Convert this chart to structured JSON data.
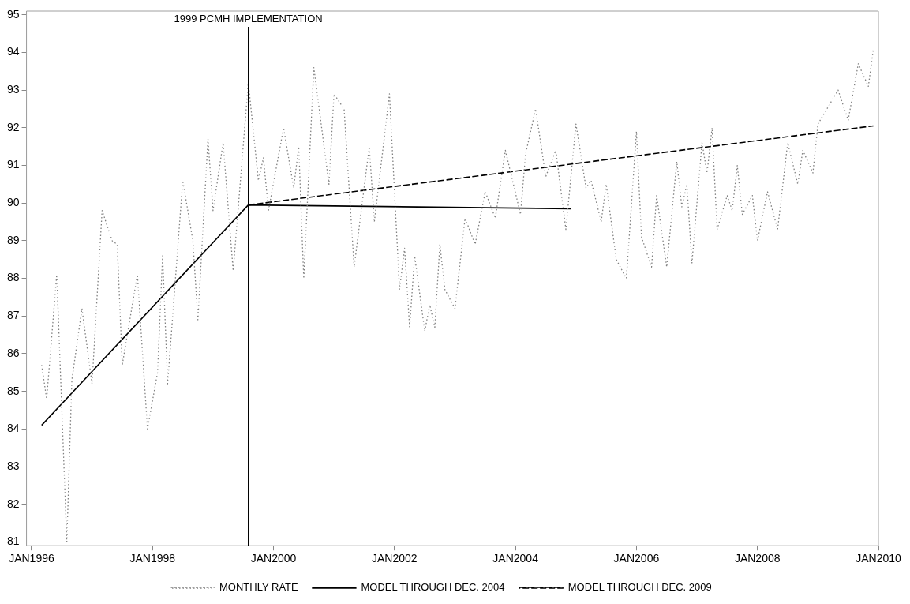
{
  "chart_data": {
    "type": "line",
    "marker": "none",
    "legend": "bottom",
    "grid": false,
    "xlim": [
      "1995-12",
      "2010-01"
    ],
    "xticks": [
      {
        "value": "1996-01",
        "label": "JAN1996"
      },
      {
        "value": "1998-01",
        "label": "JAN1998"
      },
      {
        "value": "2000-01",
        "label": "JAN2000"
      },
      {
        "value": "2002-01",
        "label": "JAN2002"
      },
      {
        "value": "2004-01",
        "label": "JAN2004"
      },
      {
        "value": "2006-01",
        "label": "JAN2006"
      },
      {
        "value": "2008-01",
        "label": "JAN2008"
      },
      {
        "value": "2010-01",
        "label": "JAN2010"
      }
    ],
    "ylim": [
      80.9,
      95.1
    ],
    "yticks": [
      81,
      82,
      83,
      84,
      85,
      86,
      87,
      88,
      89,
      90,
      91,
      92,
      93,
      94,
      95
    ],
    "ref_lines": [
      {
        "axis": "x",
        "value": "1999-08",
        "label": "1999 PCMH IMPLEMENTATION",
        "color": "#000000",
        "line_style": "solid"
      }
    ],
    "series": [
      {
        "name": "MONTHLY RATE",
        "color": "#808080",
        "line_style": "dotted",
        "x": [
          "1996-03",
          "1996-04",
          "1996-06",
          "1996-08",
          "1996-09",
          "1996-11",
          "1997-01",
          "1997-03",
          "1997-05",
          "1997-06",
          "1997-07",
          "1997-10",
          "1997-12",
          "1998-02",
          "1998-03",
          "1998-04",
          "1998-07",
          "1998-09",
          "1998-10",
          "1998-12",
          "1999-01",
          "1999-03",
          "1999-05",
          "1999-08",
          "1999-10",
          "1999-11",
          "1999-12",
          "2000-03",
          "2000-05",
          "2000-06",
          "2000-07",
          "2000-09",
          "2000-12",
          "2001-01",
          "2001-03",
          "2001-05",
          "2001-08",
          "2001-09",
          "2001-12",
          "2002-02",
          "2002-03",
          "2002-04",
          "2002-05",
          "2002-07",
          "2002-08",
          "2002-09",
          "2002-10",
          "2002-11",
          "2003-01",
          "2003-03",
          "2003-05",
          "2003-07",
          "2003-09",
          "2003-11",
          "2004-02",
          "2004-03",
          "2004-05",
          "2004-07",
          "2004-09",
          "2004-11",
          "2005-01",
          "2005-03",
          "2005-04",
          "2005-06",
          "2005-07",
          "2005-09",
          "2005-11",
          "2006-01",
          "2006-02",
          "2006-04",
          "2006-05",
          "2006-07",
          "2006-09",
          "2006-10",
          "2006-11",
          "2006-12",
          "2007-02",
          "2007-03",
          "2007-04",
          "2007-05",
          "2007-07",
          "2007-08",
          "2007-09",
          "2007-10",
          "2007-12",
          "2008-01",
          "2008-03",
          "2008-05",
          "2008-07",
          "2008-09",
          "2008-10",
          "2008-12",
          "2009-01",
          "2009-05",
          "2009-07",
          "2009-09",
          "2009-11",
          "2009-12"
        ],
        "values": [
          85.7,
          84.8,
          88.1,
          81.0,
          85.3,
          87.2,
          85.2,
          89.8,
          89.0,
          88.9,
          85.7,
          88.1,
          84.0,
          85.5,
          88.6,
          85.2,
          90.6,
          89.0,
          86.9,
          91.7,
          89.8,
          91.6,
          88.2,
          93.2,
          90.6,
          91.2,
          89.8,
          92.0,
          90.4,
          91.5,
          88.0,
          93.6,
          90.5,
          92.9,
          92.5,
          88.3,
          91.5,
          89.5,
          92.9,
          87.7,
          88.8,
          86.7,
          88.6,
          86.6,
          87.3,
          86.7,
          88.9,
          87.7,
          87.2,
          89.6,
          88.9,
          90.3,
          89.6,
          91.4,
          89.7,
          91.3,
          92.5,
          90.7,
          91.4,
          89.3,
          92.1,
          90.4,
          90.6,
          89.5,
          90.5,
          88.5,
          88.0,
          91.9,
          89.1,
          88.3,
          90.2,
          88.3,
          91.1,
          89.9,
          90.5,
          88.4,
          91.6,
          90.8,
          92.0,
          89.3,
          90.2,
          89.8,
          91.0,
          89.7,
          90.2,
          89.0,
          90.3,
          89.3,
          91.6,
          90.5,
          91.4,
          90.8,
          92.1,
          93.0,
          92.2,
          93.7,
          93.1,
          94.1
        ]
      },
      {
        "name": "MODEL THROUGH DEC. 2004",
        "color": "#000000",
        "line_style": "solid",
        "x": [
          "1996-03",
          "1999-08",
          "2004-12"
        ],
        "values": [
          84.1,
          89.95,
          89.85
        ]
      },
      {
        "name": "MODEL THROUGH DEC. 2009",
        "color": "#000000",
        "line_style": "dashed",
        "x": [
          "1999-08",
          "2009-12"
        ],
        "values": [
          89.95,
          92.05
        ]
      }
    ]
  }
}
